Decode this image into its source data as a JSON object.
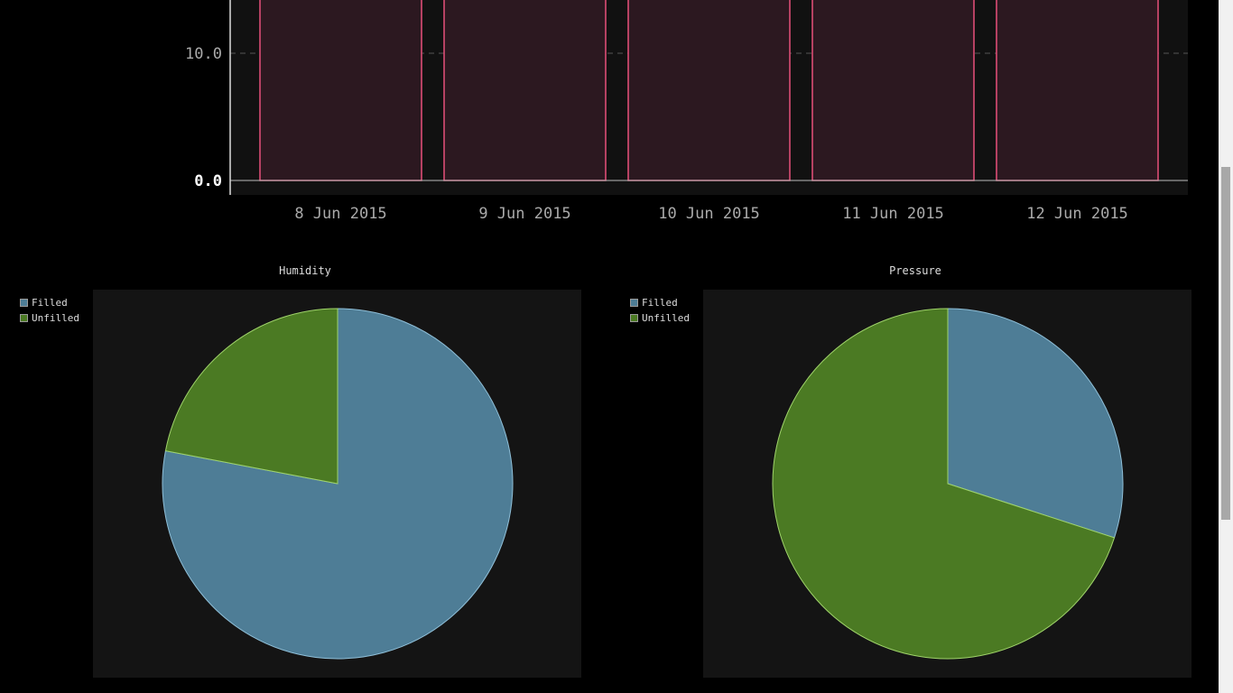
{
  "bar_chart": {
    "chart_data": {
      "type": "bar",
      "categories": [
        "8 Jun 2015",
        "9 Jun 2015",
        "10 Jun 2015",
        "11 Jun 2015",
        "12 Jun 2015"
      ],
      "series": [
        {
          "values": [
            19.5,
            19.5,
            19.5,
            19.5,
            19.5
          ]
        }
      ],
      "y_ticks": [
        0.0,
        10.0
      ],
      "y_tick_labels": [
        "0.0",
        "10.0"
      ],
      "grid": true,
      "colors": {
        "bar_stroke": "#e8507a",
        "bar_fill": "#2c1820",
        "plot_bg": "#111111",
        "gridline": "#555555"
      }
    }
  },
  "pies": [
    {
      "title": "Humidity",
      "legend": [
        "Filled",
        "Unfilled"
      ],
      "chart_data": {
        "type": "pie",
        "labels": [
          "Filled",
          "Unfilled"
        ],
        "values": [
          78,
          22
        ],
        "colors": [
          "#4e7d96",
          "#4b7a23"
        ],
        "stroke": "#9fd36a"
      }
    },
    {
      "title": "Pressure",
      "legend": [
        "Filled",
        "Unfilled"
      ],
      "chart_data": {
        "type": "pie",
        "labels": [
          "Filled",
          "Unfilled"
        ],
        "values": [
          30,
          70
        ],
        "colors": [
          "#4e7d96",
          "#4b7a23"
        ],
        "stroke": "#9fd36a"
      }
    }
  ],
  "scrollbar": {
    "position_fraction": 0.49
  }
}
